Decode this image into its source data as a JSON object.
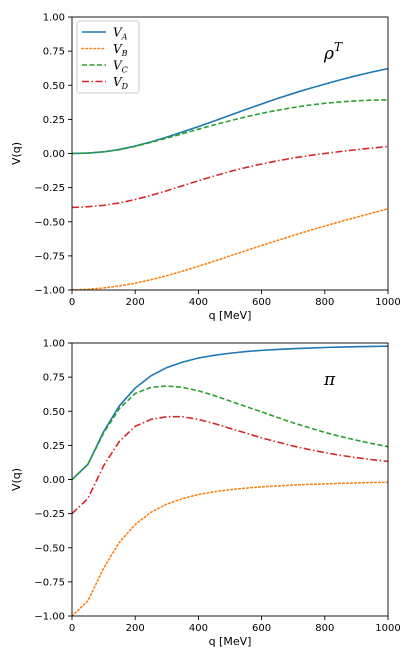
{
  "colors": {
    "V_A": "#1f77b4",
    "V_B": "#ff7f0e",
    "V_C": "#2ca02c",
    "V_D": "#d62728"
  },
  "chart_data": [
    {
      "type": "line",
      "panel_label": "ρ",
      "panel_label_sup": "T",
      "xlabel": "q [MeV]",
      "ylabel": "V(q)",
      "xlim": [
        0,
        1000
      ],
      "ylim": [
        -1.0,
        1.0
      ],
      "xticks": [
        0,
        200,
        400,
        600,
        800,
        1000
      ],
      "xtick_labels": [
        "0",
        "200",
        "400",
        "600",
        "800",
        "1000"
      ],
      "yticks": [
        -1.0,
        -0.75,
        -0.5,
        -0.25,
        0.0,
        0.25,
        0.5,
        0.75,
        1.0
      ],
      "ytick_labels": [
        "−1.00",
        "−0.75",
        "−0.50",
        "−0.25",
        "0.00",
        "0.25",
        "0.50",
        "0.75",
        "1.00"
      ],
      "grid": false,
      "legend": "top-left",
      "x": [
        0,
        50,
        100,
        150,
        200,
        250,
        300,
        350,
        400,
        450,
        500,
        550,
        600,
        650,
        700,
        750,
        800,
        850,
        900,
        950,
        1000
      ],
      "series": [
        {
          "key": "V_A",
          "name_main": "V",
          "name_sub": "A",
          "dash": "solid",
          "values": [
            0.0,
            0.003,
            0.012,
            0.03,
            0.055,
            0.085,
            0.12,
            0.158,
            0.197,
            0.238,
            0.28,
            0.322,
            0.363,
            0.403,
            0.44,
            0.475,
            0.508,
            0.54,
            0.57,
            0.597,
            0.622
          ]
        },
        {
          "key": "V_B",
          "name_main": "V",
          "name_sub": "B",
          "dash": "dotted",
          "values": [
            -1.0,
            -0.995,
            -0.985,
            -0.97,
            -0.95,
            -0.925,
            -0.895,
            -0.862,
            -0.826,
            -0.789,
            -0.75,
            -0.712,
            -0.674,
            -0.637,
            -0.601,
            -0.565,
            -0.532,
            -0.498,
            -0.467,
            -0.436,
            -0.405
          ]
        },
        {
          "key": "V_C",
          "name_main": "V",
          "name_sub": "C",
          "dash": "dashed",
          "values": [
            0.0,
            0.003,
            0.012,
            0.028,
            0.052,
            0.082,
            0.113,
            0.145,
            0.178,
            0.21,
            0.24,
            0.268,
            0.294,
            0.317,
            0.337,
            0.354,
            0.368,
            0.378,
            0.386,
            0.391,
            0.393
          ]
        },
        {
          "key": "V_D",
          "name_main": "V",
          "name_sub": "D",
          "dash": "dashdot",
          "values": [
            -0.395,
            -0.39,
            -0.38,
            -0.362,
            -0.337,
            -0.307,
            -0.273,
            -0.236,
            -0.2,
            -0.165,
            -0.132,
            -0.103,
            -0.077,
            -0.054,
            -0.033,
            -0.015,
            0.0,
            0.015,
            0.028,
            0.04,
            0.052
          ]
        }
      ]
    },
    {
      "type": "line",
      "panel_label": "π",
      "panel_label_sup": "",
      "xlabel": "q [MeV]",
      "ylabel": "V(q)",
      "xlim": [
        0,
        1000
      ],
      "ylim": [
        -1.0,
        1.0
      ],
      "xticks": [
        0,
        200,
        400,
        600,
        800,
        1000
      ],
      "xtick_labels": [
        "0",
        "200",
        "400",
        "600",
        "800",
        "1000"
      ],
      "yticks": [
        -1.0,
        -0.75,
        -0.5,
        -0.25,
        0.0,
        0.25,
        0.5,
        0.75,
        1.0
      ],
      "ytick_labels": [
        "−1.00",
        "−0.75",
        "−0.50",
        "−0.25",
        "0.00",
        "0.25",
        "0.50",
        "0.75",
        "1.00"
      ],
      "grid": false,
      "legend": "none",
      "x": [
        0,
        50,
        100,
        150,
        200,
        250,
        300,
        350,
        400,
        450,
        500,
        550,
        600,
        650,
        700,
        750,
        800,
        850,
        900,
        950,
        1000
      ],
      "series": [
        {
          "key": "V_A",
          "name_main": "V",
          "name_sub": "A",
          "dash": "solid",
          "values": [
            0.0,
            0.11,
            0.35,
            0.54,
            0.67,
            0.76,
            0.82,
            0.86,
            0.89,
            0.91,
            0.925,
            0.937,
            0.946,
            0.953,
            0.958,
            0.963,
            0.967,
            0.97,
            0.973,
            0.975,
            0.977
          ]
        },
        {
          "key": "V_B",
          "name_main": "V",
          "name_sub": "B",
          "dash": "dotted",
          "values": [
            -1.0,
            -0.89,
            -0.65,
            -0.46,
            -0.33,
            -0.24,
            -0.18,
            -0.14,
            -0.11,
            -0.09,
            -0.075,
            -0.063,
            -0.054,
            -0.047,
            -0.041,
            -0.036,
            -0.032,
            -0.028,
            -0.025,
            -0.022,
            -0.02
          ]
        },
        {
          "key": "V_C",
          "name_main": "V",
          "name_sub": "C",
          "dash": "dashed",
          "values": [
            0.0,
            0.11,
            0.34,
            0.52,
            0.63,
            0.675,
            0.685,
            0.675,
            0.65,
            0.615,
            0.575,
            0.535,
            0.495,
            0.455,
            0.415,
            0.38,
            0.345,
            0.315,
            0.288,
            0.263,
            0.24
          ]
        },
        {
          "key": "V_D",
          "name_main": "V",
          "name_sub": "D",
          "dash": "dashdot",
          "values": [
            -0.25,
            -0.14,
            0.1,
            0.28,
            0.39,
            0.44,
            0.46,
            0.46,
            0.44,
            0.41,
            0.375,
            0.34,
            0.305,
            0.275,
            0.245,
            0.22,
            0.197,
            0.177,
            0.16,
            0.145,
            0.132
          ]
        }
      ]
    }
  ]
}
